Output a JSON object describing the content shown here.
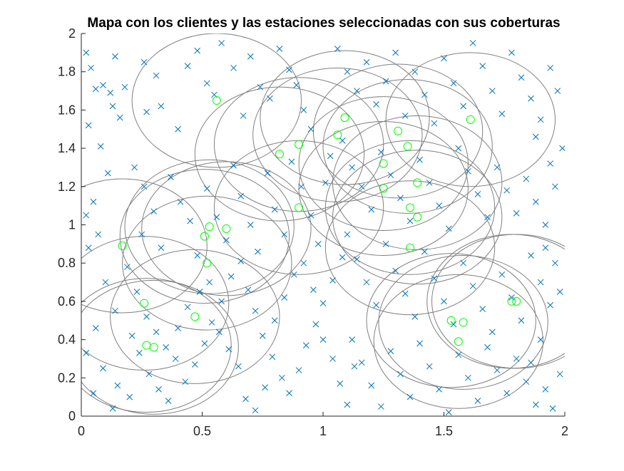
{
  "chart_data": {
    "type": "scatter",
    "title": "Mapa con los clientes y las estaciones seleccionadas con sus coberturas",
    "xlabel": "",
    "ylabel": "",
    "xlim": [
      0,
      2
    ],
    "ylim": [
      0,
      2
    ],
    "xticks": [
      0,
      0.5,
      1,
      1.5,
      2
    ],
    "xtick_labels": [
      "0",
      "0.5",
      "1",
      "1.5",
      "2"
    ],
    "yticks": [
      0,
      0.2,
      0.4,
      0.6,
      0.8,
      1,
      1.2,
      1.4,
      1.6,
      1.8,
      2
    ],
    "ytick_labels": [
      "0",
      "0.2",
      "0.4",
      "0.6",
      "0.8",
      "1",
      "1.2",
      "1.4",
      "1.6",
      "1.8",
      "2"
    ],
    "grid": false,
    "legend": "none",
    "colors": {
      "clients": "#0072BD",
      "stations": "#00FF00",
      "coverage": "#808080",
      "axes": "#262626"
    },
    "series": [
      {
        "marker": "x",
        "color": "#0072BD",
        "points": [
          [
            0.02,
            1.9
          ],
          [
            0.04,
            1.82
          ],
          [
            0.06,
            1.71
          ],
          [
            0.09,
            1.73
          ],
          [
            0.12,
            1.69
          ],
          [
            0.14,
            1.88
          ],
          [
            0.13,
            1.62
          ],
          [
            0.16,
            1.56
          ],
          [
            0.18,
            1.72
          ],
          [
            0.03,
            1.52
          ],
          [
            0.08,
            1.41
          ],
          [
            0.11,
            1.27
          ],
          [
            0.05,
            1.12
          ],
          [
            0.02,
            1.05
          ],
          [
            0.07,
            0.95
          ],
          [
            0.03,
            0.88
          ],
          [
            0.1,
            0.7
          ],
          [
            0.14,
            0.55
          ],
          [
            0.06,
            0.46
          ],
          [
            0.02,
            0.33
          ],
          [
            0.09,
            0.25
          ],
          [
            0.05,
            0.12
          ],
          [
            0.13,
            0.04
          ],
          [
            0.15,
            0.16
          ],
          [
            0.2,
            0.1
          ],
          [
            0.26,
            1.85
          ],
          [
            0.31,
            1.78
          ],
          [
            0.27,
            1.59
          ],
          [
            0.33,
            1.62
          ],
          [
            0.4,
            1.5
          ],
          [
            0.44,
            1.83
          ],
          [
            0.48,
            1.91
          ],
          [
            0.52,
            1.74
          ],
          [
            0.55,
            1.68
          ],
          [
            0.58,
            1.95
          ],
          [
            0.63,
            1.82
          ],
          [
            0.67,
            1.57
          ],
          [
            0.7,
            1.88
          ],
          [
            0.74,
            1.72
          ],
          [
            0.78,
            1.66
          ],
          [
            0.82,
            1.92
          ],
          [
            0.86,
            1.81
          ],
          [
            0.89,
            1.73
          ],
          [
            0.92,
            1.6
          ],
          [
            0.95,
            1.5
          ],
          [
            0.22,
            1.3
          ],
          [
            0.26,
            1.2
          ],
          [
            0.3,
            1.07
          ],
          [
            0.25,
            0.95
          ],
          [
            0.33,
            0.88
          ],
          [
            0.37,
            1.25
          ],
          [
            0.41,
            1.12
          ],
          [
            0.45,
            1.02
          ],
          [
            0.48,
            0.84
          ],
          [
            0.52,
            1.19
          ],
          [
            0.56,
            1.04
          ],
          [
            0.6,
            0.92
          ],
          [
            0.63,
            1.31
          ],
          [
            0.66,
            1.15
          ],
          [
            0.7,
            1.0
          ],
          [
            0.73,
            0.86
          ],
          [
            0.77,
            1.27
          ],
          [
            0.8,
            1.08
          ],
          [
            0.84,
            0.95
          ],
          [
            0.87,
            1.33
          ],
          [
            0.91,
            1.2
          ],
          [
            0.95,
            1.05
          ],
          [
            0.98,
            0.9
          ],
          [
            1.01,
            1.22
          ],
          [
            1.03,
            1.36
          ],
          [
            0.19,
            0.78
          ],
          [
            0.23,
            0.65
          ],
          [
            0.27,
            0.52
          ],
          [
            0.31,
            0.44
          ],
          [
            0.35,
            0.36
          ],
          [
            0.39,
            0.3
          ],
          [
            0.43,
            0.18
          ],
          [
            0.47,
            0.27
          ],
          [
            0.51,
            0.38
          ],
          [
            0.54,
            0.49
          ],
          [
            0.58,
            0.6
          ],
          [
            0.62,
            0.73
          ],
          [
            0.66,
            0.81
          ],
          [
            0.69,
            0.66
          ],
          [
            0.72,
            0.55
          ],
          [
            0.75,
            0.42
          ],
          [
            0.79,
            0.31
          ],
          [
            0.83,
            0.2
          ],
          [
            0.86,
            0.12
          ],
          [
            0.9,
            0.24
          ],
          [
            0.93,
            0.37
          ],
          [
            0.97,
            0.48
          ],
          [
            1.0,
            0.59
          ],
          [
            1.04,
            0.71
          ],
          [
            1.08,
            0.83
          ],
          [
            0.21,
            0.42
          ],
          [
            0.24,
            0.33
          ],
          [
            0.28,
            0.22
          ],
          [
            0.32,
            0.14
          ],
          [
            0.36,
            0.08
          ],
          [
            0.4,
            0.46
          ],
          [
            0.44,
            0.57
          ],
          [
            0.49,
            0.65
          ],
          [
            0.53,
            0.7
          ],
          [
            0.57,
            0.44
          ],
          [
            0.61,
            0.35
          ],
          [
            0.65,
            0.26
          ],
          [
            0.68,
            0.09
          ],
          [
            0.72,
            0.03
          ],
          [
            0.76,
            0.15
          ],
          [
            0.8,
            0.5
          ],
          [
            0.84,
            0.62
          ],
          [
            0.88,
            0.74
          ],
          [
            0.92,
            0.8
          ],
          [
            0.96,
            0.66
          ],
          [
            1.0,
            0.4
          ],
          [
            1.04,
            0.3
          ],
          [
            1.07,
            0.17
          ],
          [
            1.1,
            0.06
          ],
          [
            1.13,
            0.26
          ],
          [
            1.06,
            1.92
          ],
          [
            1.1,
            1.8
          ],
          [
            1.14,
            1.7
          ],
          [
            1.18,
            1.85
          ],
          [
            1.22,
            1.63
          ],
          [
            1.26,
            1.75
          ],
          [
            1.3,
            1.9
          ],
          [
            1.34,
            1.57
          ],
          [
            1.38,
            1.8
          ],
          [
            1.42,
            1.68
          ],
          [
            1.46,
            1.53
          ],
          [
            1.5,
            1.87
          ],
          [
            1.54,
            1.74
          ],
          [
            1.58,
            1.62
          ],
          [
            1.62,
            1.95
          ],
          [
            1.66,
            1.83
          ],
          [
            1.7,
            1.7
          ],
          [
            1.74,
            1.58
          ],
          [
            1.78,
            1.9
          ],
          [
            1.82,
            1.77
          ],
          [
            1.86,
            1.66
          ],
          [
            1.9,
            1.55
          ],
          [
            1.94,
            1.82
          ],
          [
            1.97,
            1.7
          ],
          [
            1.88,
            1.46
          ],
          [
            1.08,
            1.44
          ],
          [
            1.12,
            1.3
          ],
          [
            1.16,
            1.2
          ],
          [
            1.2,
            1.08
          ],
          [
            1.24,
            1.38
          ],
          [
            1.28,
            1.26
          ],
          [
            1.32,
            1.14
          ],
          [
            1.36,
            1.02
          ],
          [
            1.4,
            1.34
          ],
          [
            1.44,
            1.22
          ],
          [
            1.48,
            1.1
          ],
          [
            1.52,
            0.98
          ],
          [
            1.56,
            1.4
          ],
          [
            1.6,
            1.28
          ],
          [
            1.64,
            1.16
          ],
          [
            1.68,
            1.04
          ],
          [
            1.72,
            1.3
          ],
          [
            1.76,
            1.18
          ],
          [
            1.8,
            1.06
          ],
          [
            1.84,
            1.24
          ],
          [
            1.88,
            1.12
          ],
          [
            1.92,
            1.0
          ],
          [
            1.96,
            1.2
          ],
          [
            1.99,
            1.4
          ],
          [
            1.94,
            1.32
          ],
          [
            1.1,
            0.95
          ],
          [
            1.14,
            0.82
          ],
          [
            1.18,
            0.7
          ],
          [
            1.22,
            0.58
          ],
          [
            1.26,
            0.9
          ],
          [
            1.3,
            0.76
          ],
          [
            1.34,
            0.64
          ],
          [
            1.38,
            0.52
          ],
          [
            1.42,
            0.86
          ],
          [
            1.46,
            0.72
          ],
          [
            1.5,
            0.6
          ],
          [
            1.54,
            0.48
          ],
          [
            1.58,
            0.8
          ],
          [
            1.62,
            0.68
          ],
          [
            1.66,
            0.56
          ],
          [
            1.7,
            0.44
          ],
          [
            1.74,
            0.74
          ],
          [
            1.78,
            0.62
          ],
          [
            1.82,
            0.5
          ],
          [
            1.86,
            0.84
          ],
          [
            1.9,
            0.7
          ],
          [
            1.94,
            0.58
          ],
          [
            1.98,
            0.65
          ],
          [
            1.92,
            0.88
          ],
          [
            1.96,
            0.8
          ],
          [
            1.12,
            0.4
          ],
          [
            1.16,
            0.28
          ],
          [
            1.2,
            0.16
          ],
          [
            1.24,
            0.05
          ],
          [
            1.28,
            0.34
          ],
          [
            1.32,
            0.22
          ],
          [
            1.36,
            0.1
          ],
          [
            1.4,
            0.38
          ],
          [
            1.44,
            0.26
          ],
          [
            1.48,
            0.14
          ],
          [
            1.52,
            0.02
          ],
          [
            1.56,
            0.32
          ],
          [
            1.6,
            0.2
          ],
          [
            1.64,
            0.08
          ],
          [
            1.68,
            0.36
          ],
          [
            1.72,
            0.24
          ],
          [
            1.76,
            0.12
          ],
          [
            1.8,
            0.3
          ],
          [
            1.84,
            0.18
          ],
          [
            1.88,
            0.06
          ],
          [
            1.92,
            0.14
          ],
          [
            1.95,
            0.04
          ],
          [
            1.98,
            0.22
          ],
          [
            1.9,
            0.4
          ],
          [
            1.86,
            0.28
          ]
        ]
      },
      {
        "marker": "o",
        "color": "#00FF00",
        "points": [
          [
            0.56,
            1.65
          ],
          [
            0.82,
            1.37
          ],
          [
            0.9,
            1.42
          ],
          [
            1.06,
            1.47
          ],
          [
            1.09,
            1.56
          ],
          [
            1.31,
            1.49
          ],
          [
            1.35,
            1.41
          ],
          [
            1.61,
            1.55
          ],
          [
            1.25,
            1.32
          ],
          [
            1.25,
            1.19
          ],
          [
            1.39,
            1.22
          ],
          [
            0.9,
            1.09
          ],
          [
            1.36,
            1.09
          ],
          [
            1.39,
            1.04
          ],
          [
            0.17,
            0.89
          ],
          [
            0.51,
            0.94
          ],
          [
            0.53,
            0.99
          ],
          [
            0.6,
            0.98
          ],
          [
            0.52,
            0.8
          ],
          [
            1.36,
            0.88
          ],
          [
            0.26,
            0.59
          ],
          [
            0.47,
            0.52
          ],
          [
            0.27,
            0.37
          ],
          [
            0.3,
            0.36
          ],
          [
            1.53,
            0.5
          ],
          [
            1.58,
            0.49
          ],
          [
            1.56,
            0.39
          ],
          [
            1.78,
            0.6
          ],
          [
            1.8,
            0.6
          ]
        ]
      }
    ],
    "coverage_circles": [
      {
        "center": [
          0.56,
          1.65
        ],
        "radius": 0.35
      },
      {
        "center": [
          0.82,
          1.37
        ],
        "radius": 0.35
      },
      {
        "center": [
          0.9,
          1.42
        ],
        "radius": 0.35
      },
      {
        "center": [
          1.06,
          1.47
        ],
        "radius": 0.35
      },
      {
        "center": [
          1.09,
          1.56
        ],
        "radius": 0.35
      },
      {
        "center": [
          1.31,
          1.49
        ],
        "radius": 0.35
      },
      {
        "center": [
          1.35,
          1.41
        ],
        "radius": 0.35
      },
      {
        "center": [
          1.61,
          1.55
        ],
        "radius": 0.35
      },
      {
        "center": [
          1.25,
          1.32
        ],
        "radius": 0.35
      },
      {
        "center": [
          1.25,
          1.19
        ],
        "radius": 0.35
      },
      {
        "center": [
          1.39,
          1.22
        ],
        "radius": 0.35
      },
      {
        "center": [
          0.9,
          1.09
        ],
        "radius": 0.35
      },
      {
        "center": [
          1.36,
          1.09
        ],
        "radius": 0.35
      },
      {
        "center": [
          1.39,
          1.04
        ],
        "radius": 0.35
      },
      {
        "center": [
          0.17,
          0.89
        ],
        "radius": 0.35
      },
      {
        "center": [
          0.51,
          0.94
        ],
        "radius": 0.35
      },
      {
        "center": [
          0.53,
          0.99
        ],
        "radius": 0.35
      },
      {
        "center": [
          0.6,
          0.98
        ],
        "radius": 0.35
      },
      {
        "center": [
          0.52,
          0.8
        ],
        "radius": 0.35
      },
      {
        "center": [
          1.36,
          0.88
        ],
        "radius": 0.35
      },
      {
        "center": [
          0.26,
          0.59
        ],
        "radius": 0.35
      },
      {
        "center": [
          0.47,
          0.52
        ],
        "radius": 0.35
      },
      {
        "center": [
          0.27,
          0.37
        ],
        "radius": 0.35
      },
      {
        "center": [
          0.3,
          0.36
        ],
        "radius": 0.35
      },
      {
        "center": [
          1.53,
          0.5
        ],
        "radius": 0.35
      },
      {
        "center": [
          1.58,
          0.49
        ],
        "radius": 0.35
      },
      {
        "center": [
          1.56,
          0.39
        ],
        "radius": 0.35
      },
      {
        "center": [
          1.78,
          0.6
        ],
        "radius": 0.35
      },
      {
        "center": [
          1.8,
          0.6
        ],
        "radius": 0.35
      }
    ]
  }
}
